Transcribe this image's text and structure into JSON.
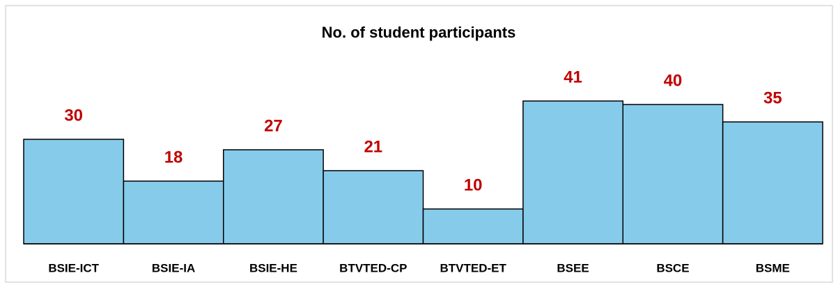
{
  "chart_data": {
    "type": "bar",
    "title": "No. of student participants",
    "categories": [
      "BSIE-ICT",
      "BSIE-IA",
      "BSIE-HE",
      "BTVTED-CP",
      "BTVTED-ET",
      "BSEE",
      "BSCE",
      "BSME"
    ],
    "values": [
      30,
      18,
      27,
      21,
      10,
      41,
      40,
      35
    ],
    "color": "#87cbea"
  }
}
